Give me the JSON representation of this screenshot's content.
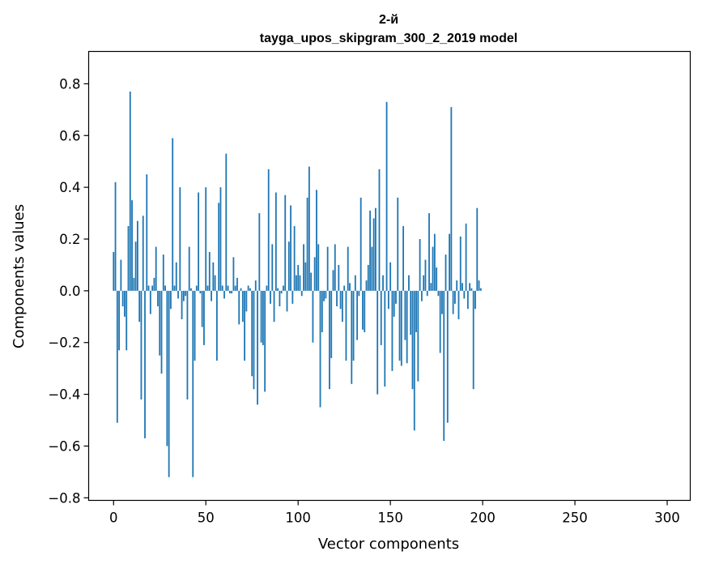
{
  "chart_data": {
    "type": "bar",
    "title_line1": "2-й",
    "title_line2": "tayga_upos_skipgram_300_2_2019 model",
    "xlabel": "Vector components",
    "ylabel": "Components values",
    "xlim": [
      -13.5,
      312.5
    ],
    "ylim": [
      -0.81,
      0.925
    ],
    "xticks": [
      0,
      50,
      100,
      150,
      200,
      250,
      300
    ],
    "yticks": [
      -0.8,
      -0.6,
      -0.4,
      -0.2,
      0.0,
      0.2,
      0.4,
      0.6,
      0.8
    ],
    "ytick_labels": [
      "−0.8",
      "−0.6",
      "−0.4",
      "−0.2",
      "0.0",
      "0.2",
      "0.4",
      "0.6",
      "0.8"
    ],
    "bar_color": "#1f77b4",
    "grid": false,
    "values": [
      0.15,
      0.42,
      -0.51,
      -0.23,
      0.12,
      -0.06,
      -0.1,
      -0.23,
      0.25,
      0.77,
      0.35,
      0.05,
      0.19,
      0.27,
      -0.12,
      -0.42,
      0.29,
      -0.57,
      0.45,
      0.02,
      -0.09,
      0.02,
      0.05,
      0.17,
      -0.06,
      -0.25,
      -0.32,
      0.14,
      0.02,
      -0.6,
      -0.72,
      -0.07,
      0.59,
      0.02,
      0.11,
      -0.03,
      0.4,
      -0.11,
      -0.04,
      -0.02,
      -0.42,
      0.17,
      0.01,
      -0.72,
      -0.27,
      0.02,
      0.38,
      -0.01,
      -0.14,
      -0.21,
      0.4,
      0.02,
      0.15,
      -0.04,
      0.11,
      0.06,
      -0.27,
      0.34,
      0.4,
      0.02,
      -0.03,
      0.53,
      0.02,
      -0.01,
      -0.01,
      0.13,
      0.02,
      0.05,
      -0.13,
      0.01,
      -0.12,
      -0.27,
      -0.08,
      0.02,
      0.01,
      -0.33,
      -0.38,
      0.04,
      -0.44,
      0.3,
      -0.2,
      -0.21,
      -0.39,
      0.02,
      0.47,
      -0.05,
      0.18,
      -0.12,
      0.38,
      0.01,
      -0.06,
      -0.01,
      0.02,
      0.37,
      -0.08,
      0.19,
      0.33,
      -0.05,
      0.25,
      0.06,
      0.1,
      0.06,
      -0.02,
      0.18,
      0.11,
      0.36,
      0.48,
      0.07,
      -0.2,
      0.13,
      0.39,
      0.18,
      -0.45,
      -0.16,
      -0.04,
      -0.03,
      0.17,
      -0.38,
      -0.26,
      0.08,
      0.18,
      -0.06,
      0.1,
      -0.07,
      -0.12,
      0.02,
      -0.27,
      0.17,
      0.03,
      -0.36,
      -0.27,
      0.06,
      -0.19,
      -0.02,
      0.36,
      -0.15,
      -0.16,
      0.04,
      0.1,
      0.31,
      0.17,
      0.28,
      0.32,
      -0.4,
      0.47,
      -0.21,
      0.06,
      -0.37,
      0.73,
      -0.07,
      0.11,
      -0.31,
      -0.1,
      -0.05,
      0.36,
      -0.27,
      -0.29,
      0.25,
      -0.19,
      -0.28,
      0.06,
      -0.17,
      -0.38,
      -0.54,
      -0.16,
      -0.35,
      0.2,
      -0.04,
      0.06,
      0.12,
      -0.02,
      0.3,
      0.03,
      0.17,
      0.22,
      0.09,
      -0.02,
      -0.24,
      -0.09,
      -0.58,
      0.14,
      -0.51,
      0.22,
      0.71,
      -0.09,
      -0.05,
      0.04,
      -0.11,
      0.21,
      0.03,
      -0.03,
      0.26,
      -0.07,
      0.03,
      0.01,
      -0.38,
      -0.07,
      0.32,
      0.04,
      0.01
    ]
  }
}
